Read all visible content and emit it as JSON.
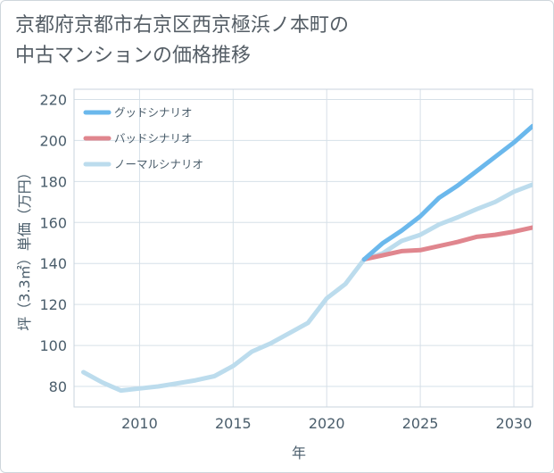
{
  "header": {
    "title_line1": "京都府京都市右京区西京極浜ノ本町の",
    "title_line2": "中古マンションの価格推移"
  },
  "chart_data": {
    "type": "line",
    "title": "京都府京都市右京区西京極浜ノ本町の中古マンションの価格推移",
    "xlabel": "年",
    "ylabel": "坪（3.3㎡）単価（万円）",
    "xlim": [
      2006.5,
      2031
    ],
    "ylim": [
      70,
      225
    ],
    "xticks": [
      2010,
      2015,
      2020,
      2025,
      2030
    ],
    "yticks": [
      80,
      100,
      120,
      140,
      160,
      180,
      200,
      220
    ],
    "grid": true,
    "legend_position": "top-left",
    "series": [
      {
        "name": "グッドシナリオ",
        "color": "#6bb8ec",
        "x": [
          2022,
          2023,
          2024,
          2025,
          2026,
          2027,
          2028,
          2029,
          2030,
          2031
        ],
        "y": [
          142,
          150,
          156,
          163,
          172,
          178,
          185,
          192,
          199,
          207
        ]
      },
      {
        "name": "バッドシナリオ",
        "color": "#e0868e",
        "x": [
          2022,
          2023,
          2024,
          2025,
          2026,
          2027,
          2028,
          2029,
          2030,
          2031
        ],
        "y": [
          142,
          144,
          146,
          146.5,
          148.5,
          150.5,
          153,
          154,
          155.5,
          157.5
        ]
      },
      {
        "name": "ノーマルシナリオ",
        "color": "#bcdced",
        "x": [
          2007,
          2008,
          2009,
          2010,
          2011,
          2012,
          2013,
          2014,
          2015,
          2016,
          2017,
          2018,
          2019,
          2020,
          2021,
          2022,
          2023,
          2024,
          2025,
          2026,
          2027,
          2028,
          2029,
          2030,
          2031
        ],
        "y": [
          87,
          82,
          78,
          79,
          80,
          81.5,
          83,
          85,
          90,
          97,
          101,
          106,
          111,
          123,
          130,
          142,
          145,
          151,
          154,
          159,
          162.5,
          166.5,
          170,
          175,
          178.5
        ]
      }
    ]
  }
}
